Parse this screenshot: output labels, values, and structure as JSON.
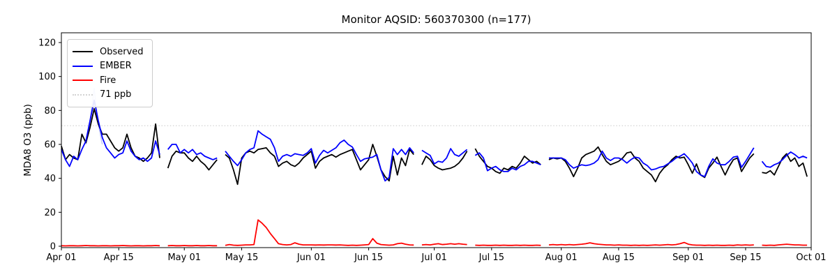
{
  "title": "Monitor AQSID: 560370300 (n=177)",
  "ylabel": "MDA8 O3 (ppb)",
  "legend": {
    "entries": [
      {
        "label": "Observed",
        "color": "#000000",
        "style": "solid"
      },
      {
        "label": "EMBER",
        "color": "#0000ff",
        "style": "solid"
      },
      {
        "label": "Fire",
        "color": "#ff0000",
        "style": "solid"
      },
      {
        "label": "71 ppb",
        "color": "#d3d3d3",
        "style": "dotted"
      }
    ]
  },
  "chart_data": {
    "type": "line",
    "title": "Monitor AQSID: 560370300 (n=177)",
    "xlabel": "",
    "ylabel": "MDA8 O3 (ppb)",
    "x_unit": "days since Apr 01",
    "xlim_days": [
      0,
      183
    ],
    "ylim": [
      -1,
      126
    ],
    "grid": false,
    "legend_position": "upper left",
    "x_tick_days": [
      0,
      14,
      30,
      44,
      61,
      75,
      91,
      105,
      122,
      136,
      153,
      167,
      183
    ],
    "x_tick_labels": [
      "Apr 01",
      "Apr 15",
      "May 01",
      "May 15",
      "Jun 01",
      "Jun 15",
      "Jul 01",
      "Jul 15",
      "Aug 01",
      "Aug 15",
      "Sep 01",
      "Sep 15",
      "Oct 01"
    ],
    "y_ticks": [
      0,
      20,
      40,
      60,
      80,
      100,
      120
    ],
    "threshold": {
      "value": 71,
      "label": "71 ppb",
      "color": "#d3d3d3"
    },
    "missing_days": [
      "Apr 26",
      "May 10",
      "Jun 27",
      "Jul 10",
      "Jul 28",
      "Sep 19"
    ],
    "series": [
      {
        "name": "EMBER-peak-faint",
        "color": "#8f9bf0",
        "opacity": 0.55,
        "width": 1.5,
        "x": [
          6,
          7,
          8,
          9,
          10
        ],
        "values": [
          60,
          74,
          93,
          72,
          60
        ]
      },
      {
        "name": "Observed",
        "color": "#000000",
        "values": [
          59,
          51,
          54,
          52,
          51,
          66,
          61,
          70,
          81,
          72,
          66,
          66,
          62,
          58,
          56,
          58,
          66,
          58,
          53,
          52,
          50,
          52,
          55,
          72,
          52,
          null,
          46,
          53,
          56,
          55,
          55,
          52,
          50,
          53,
          50,
          48,
          45,
          48,
          51,
          null,
          54,
          52,
          45,
          36.5,
          52,
          55,
          56,
          55,
          57,
          57.5,
          58,
          55,
          53,
          47,
          49,
          50,
          48,
          47,
          49,
          52,
          54,
          56,
          46,
          50,
          52,
          53,
          54,
          52.5,
          54,
          55,
          56,
          57,
          51,
          45,
          48,
          51,
          60,
          53,
          45,
          41,
          38.5,
          53,
          42,
          52,
          47.5,
          57,
          54,
          null,
          48,
          53,
          51,
          47.5,
          46,
          45,
          45.5,
          46,
          47,
          49,
          52,
          56,
          null,
          57.5,
          53,
          50,
          47,
          46,
          44,
          43,
          46,
          45,
          47,
          46,
          49,
          53,
          51,
          49,
          50,
          48,
          null,
          51,
          52,
          51.5,
          52,
          50,
          46,
          41,
          46,
          52,
          54,
          55,
          56,
          58.5,
          54,
          50,
          48,
          49,
          50,
          52,
          55,
          55.5,
          52,
          50,
          46,
          44,
          42,
          38,
          43,
          46,
          48,
          51,
          53,
          52,
          52.5,
          48,
          43,
          48.5,
          42,
          40.5,
          46,
          49,
          52.5,
          47,
          42,
          47,
          51,
          52,
          44,
          48,
          52,
          54.5,
          null,
          43.5,
          43,
          44.5,
          42,
          47,
          52,
          54.5,
          50,
          52,
          47,
          49,
          41
        ]
      },
      {
        "name": "EMBER",
        "color": "#0000ff",
        "values": [
          57,
          51,
          47,
          53,
          51,
          57,
          62,
          74,
          86,
          74,
          64,
          58,
          55,
          52,
          54,
          55,
          62,
          56,
          53,
          51,
          52,
          50,
          52,
          62,
          54,
          null,
          57,
          60,
          60,
          55,
          57,
          55,
          57,
          54,
          55,
          53,
          52,
          51,
          52,
          null,
          56,
          53,
          50,
          47.5,
          51,
          55,
          57,
          58,
          68,
          66,
          64.5,
          63,
          58,
          50,
          53,
          54,
          53,
          54.5,
          54,
          53.5,
          55,
          57.5,
          49,
          53.5,
          56.5,
          55,
          56.5,
          58,
          61,
          62.5,
          60,
          58.5,
          54,
          50,
          51.5,
          52,
          52.5,
          54,
          45,
          38.5,
          40.5,
          57.5,
          54,
          57,
          54,
          58,
          55,
          null,
          56.5,
          55,
          53.5,
          48.5,
          50,
          49.5,
          52,
          57.5,
          54,
          53,
          55,
          57,
          null,
          53.5,
          55,
          52,
          44.5,
          46,
          47,
          45,
          44,
          44,
          46,
          45,
          47,
          48,
          50,
          50,
          49,
          48,
          null,
          52,
          52,
          52,
          52,
          51,
          48,
          46,
          47,
          48,
          47.5,
          48,
          49,
          51,
          56,
          52,
          50.5,
          52,
          52,
          51,
          49,
          51,
          52.5,
          52,
          49,
          47.5,
          45,
          45.5,
          46.5,
          47,
          48.5,
          50,
          52,
          53,
          54.5,
          52,
          49,
          44,
          42,
          41,
          47,
          51.5,
          49,
          48,
          48,
          50,
          52.5,
          53,
          46.5,
          50,
          54,
          58,
          null,
          50,
          47,
          46.5,
          48,
          49,
          51,
          53.5,
          55.5,
          54,
          52,
          53,
          52
        ]
      },
      {
        "name": "Fire",
        "color": "#ff0000",
        "values": [
          0.3,
          0.2,
          0.3,
          0.3,
          0.2,
          0.3,
          0.4,
          0.3,
          0.3,
          0.2,
          0.3,
          0.3,
          0.2,
          0.3,
          0.3,
          0.4,
          0.3,
          0.2,
          0.3,
          0.3,
          0.2,
          0.3,
          0.3,
          0.4,
          0.3,
          null,
          0.3,
          0.4,
          0.3,
          0.3,
          0.4,
          0.3,
          0.3,
          0.4,
          0.3,
          0.3,
          0.4,
          0.3,
          0.3,
          null,
          0.5,
          1.0,
          0.6,
          0.5,
          0.6,
          0.8,
          0.8,
          1.0,
          15.5,
          13.5,
          11.0,
          7.5,
          4.5,
          1.5,
          1.0,
          0.8,
          1.0,
          2.0,
          1.2,
          0.8,
          0.8,
          0.8,
          0.7,
          0.8,
          0.7,
          0.8,
          0.8,
          0.7,
          0.8,
          0.6,
          0.5,
          0.6,
          0.5,
          0.6,
          0.8,
          1.0,
          4.5,
          1.8,
          1.0,
          0.8,
          0.6,
          0.8,
          1.5,
          1.8,
          1.2,
          0.8,
          0.7,
          null,
          0.8,
          1.0,
          0.8,
          1.2,
          1.5,
          1.0,
          1.2,
          1.5,
          1.2,
          1.5,
          1.2,
          1.0,
          null,
          0.6,
          0.5,
          0.6,
          0.5,
          0.5,
          0.6,
          0.5,
          0.6,
          0.5,
          0.5,
          0.6,
          0.5,
          0.6,
          0.5,
          0.5,
          0.6,
          0.5,
          null,
          0.8,
          1.0,
          0.8,
          1.0,
          0.8,
          1.0,
          0.8,
          1.0,
          1.2,
          1.5,
          2.0,
          1.5,
          1.2,
          1.0,
          0.8,
          0.8,
          0.6,
          0.8,
          0.6,
          0.6,
          0.5,
          0.6,
          0.5,
          0.6,
          0.5,
          0.6,
          0.8,
          0.6,
          0.8,
          1.0,
          0.8,
          1.0,
          1.5,
          2.2,
          1.2,
          0.8,
          0.6,
          0.6,
          0.5,
          0.6,
          0.5,
          0.6,
          0.5,
          0.5,
          0.6,
          0.5,
          0.8,
          0.6,
          0.8,
          0.6,
          0.8,
          null,
          0.6,
          0.5,
          0.6,
          0.5,
          0.8,
          1.0,
          1.2,
          1.0,
          0.8,
          0.8,
          0.6,
          0.6
        ]
      }
    ]
  }
}
